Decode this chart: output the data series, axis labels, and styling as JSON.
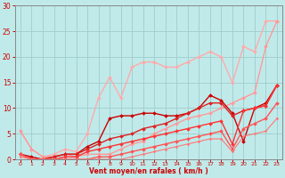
{
  "bg_color": "#c0eaea",
  "grid_color": "#a0cccc",
  "xlabel": "Vent moyen/en rafales ( km/h )",
  "xlabel_color": "#cc0000",
  "tick_color": "#cc0000",
  "axis_color": "#888888",
  "xlim": [
    -0.5,
    23.5
  ],
  "ylim": [
    0,
    30
  ],
  "xticks": [
    0,
    1,
    2,
    3,
    4,
    5,
    6,
    7,
    8,
    9,
    10,
    11,
    12,
    13,
    14,
    15,
    16,
    17,
    18,
    19,
    20,
    21,
    22,
    23
  ],
  "yticks": [
    0,
    5,
    10,
    15,
    20,
    25,
    30
  ],
  "series": [
    {
      "x": [
        0,
        1,
        2,
        3,
        4,
        5,
        6,
        7,
        8,
        9,
        10,
        11,
        12,
        13,
        14,
        15,
        16,
        17,
        18,
        19,
        20,
        21,
        22,
        23
      ],
      "y": [
        5.5,
        2.0,
        0.5,
        1.0,
        2.0,
        1.5,
        5.0,
        12.0,
        16.0,
        12.0,
        18.0,
        19.0,
        19.0,
        18.0,
        18.0,
        19.0,
        20.0,
        21.0,
        20.0,
        15.0,
        22.0,
        21.0,
        27.0,
        27.0
      ],
      "color": "#ffaaaa",
      "lw": 1.0,
      "marker": "D",
      "ms": 2.0
    },
    {
      "x": [
        0,
        1,
        2,
        3,
        4,
        5,
        6,
        7,
        8,
        9,
        10,
        11,
        12,
        13,
        14,
        15,
        16,
        17,
        18,
        19,
        20,
        21,
        22,
        23
      ],
      "y": [
        5.5,
        2.0,
        0.5,
        0.5,
        1.0,
        0.5,
        1.0,
        1.0,
        1.0,
        2.0,
        3.0,
        3.5,
        5.0,
        6.0,
        7.0,
        8.0,
        8.5,
        9.0,
        10.0,
        11.0,
        12.0,
        13.0,
        22.0,
        27.0
      ],
      "color": "#ff9999",
      "lw": 1.0,
      "marker": "D",
      "ms": 2.0
    },
    {
      "x": [
        0,
        1,
        2,
        3,
        4,
        5,
        6,
        7,
        8,
        9,
        10,
        11,
        12,
        13,
        14,
        15,
        16,
        17,
        18,
        19,
        20,
        21,
        22,
        23
      ],
      "y": [
        1.0,
        0.5,
        0.0,
        0.5,
        1.0,
        1.0,
        2.5,
        3.5,
        8.0,
        8.5,
        8.5,
        9.0,
        9.0,
        8.5,
        8.5,
        9.0,
        10.0,
        12.5,
        11.5,
        9.0,
        3.5,
        10.0,
        11.0,
        14.5
      ],
      "color": "#cc0000",
      "lw": 1.0,
      "marker": "D",
      "ms": 2.0
    },
    {
      "x": [
        0,
        1,
        2,
        3,
        4,
        5,
        6,
        7,
        8,
        9,
        10,
        11,
        12,
        13,
        14,
        15,
        16,
        17,
        18,
        19,
        20,
        21,
        22,
        23
      ],
      "y": [
        1.0,
        0.0,
        0.0,
        0.5,
        1.0,
        1.0,
        2.0,
        3.0,
        4.0,
        4.5,
        5.0,
        6.0,
        6.5,
        7.0,
        8.0,
        9.0,
        10.0,
        11.0,
        11.0,
        8.5,
        9.5,
        10.0,
        10.5,
        14.5
      ],
      "color": "#dd2222",
      "lw": 1.0,
      "marker": "D",
      "ms": 2.0
    },
    {
      "x": [
        0,
        1,
        2,
        3,
        4,
        5,
        6,
        7,
        8,
        9,
        10,
        11,
        12,
        13,
        14,
        15,
        16,
        17,
        18,
        19,
        20,
        21,
        22,
        23
      ],
      "y": [
        1.0,
        0.0,
        0.0,
        0.0,
        0.5,
        0.5,
        1.5,
        2.0,
        2.5,
        3.0,
        3.5,
        4.0,
        4.5,
        5.0,
        5.5,
        6.0,
        6.5,
        7.0,
        7.5,
        3.0,
        9.5,
        10.0,
        10.5,
        14.5
      ],
      "color": "#ff3333",
      "lw": 1.0,
      "marker": "D",
      "ms": 2.0
    },
    {
      "x": [
        0,
        1,
        2,
        3,
        4,
        5,
        6,
        7,
        8,
        9,
        10,
        11,
        12,
        13,
        14,
        15,
        16,
        17,
        18,
        19,
        20,
        21,
        22,
        23
      ],
      "y": [
        1.0,
        0.0,
        0.0,
        0.0,
        0.0,
        0.0,
        0.0,
        0.5,
        0.5,
        1.0,
        1.5,
        2.0,
        2.5,
        3.0,
        3.5,
        4.0,
        4.5,
        5.0,
        5.5,
        2.0,
        6.0,
        7.0,
        8.0,
        11.0
      ],
      "color": "#ff5555",
      "lw": 1.0,
      "marker": "D",
      "ms": 2.0
    },
    {
      "x": [
        0,
        1,
        2,
        3,
        4,
        5,
        6,
        7,
        8,
        9,
        10,
        11,
        12,
        13,
        14,
        15,
        16,
        17,
        18,
        19,
        20,
        21,
        22,
        23
      ],
      "y": [
        0.5,
        0.0,
        0.0,
        0.0,
        0.0,
        0.0,
        0.0,
        0.0,
        0.0,
        0.0,
        0.5,
        1.0,
        1.5,
        2.0,
        2.5,
        3.0,
        3.5,
        4.0,
        4.0,
        1.5,
        4.5,
        5.0,
        5.5,
        8.0
      ],
      "color": "#ff7777",
      "lw": 0.8,
      "marker": "D",
      "ms": 1.5
    }
  ],
  "arrow_color": "#cc0000"
}
